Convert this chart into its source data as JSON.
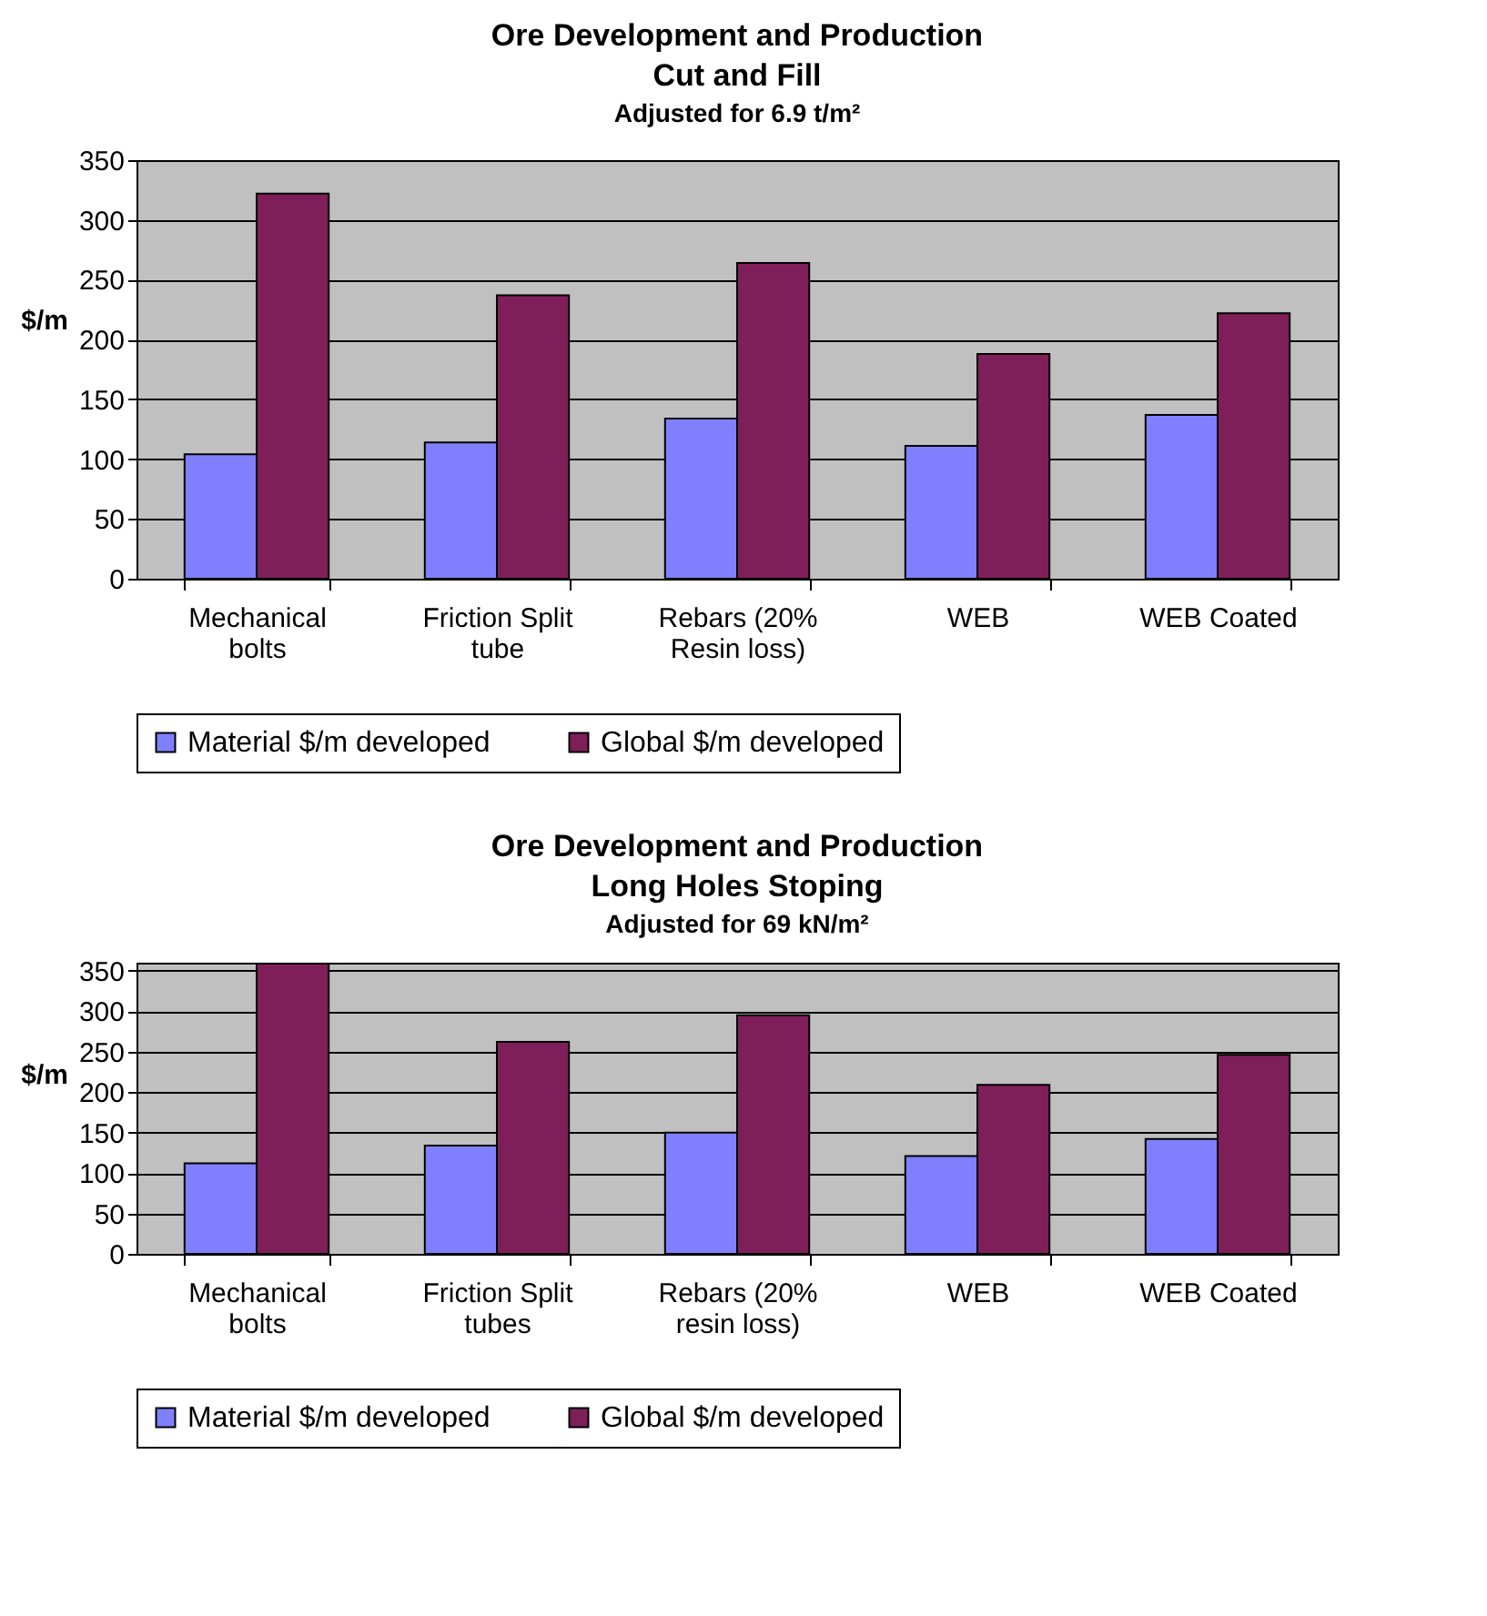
{
  "chart_data": [
    {
      "type": "bar",
      "title": "Ore Development and Production\nCut and Fill",
      "subtitle": "Adjusted for 6.9 t/m²",
      "ylabel": "$/m",
      "categories": [
        "Mechanical bolts",
        "Friction Split tube",
        "Rebars (20% Resin loss)",
        "WEB",
        "WEB Coated"
      ],
      "series": [
        {
          "name": "Material $/m developed",
          "color": "#8080ff",
          "values": [
            104,
            114,
            134,
            111,
            137
          ]
        },
        {
          "name": "Global $/m developed",
          "color": "#7f1f5a",
          "values": [
            322,
            237,
            264,
            188,
            222
          ]
        }
      ],
      "ylim": [
        0,
        350
      ],
      "yticks": [
        0,
        50,
        100,
        150,
        200,
        250,
        300,
        350
      ],
      "grid": "y",
      "legend": "bottom"
    },
    {
      "type": "bar",
      "title": "Ore Development and Production\nLong Holes Stoping",
      "subtitle": "Adjusted for 69 kN/m²",
      "ylabel": "$/m",
      "categories": [
        "Mechanical bolts",
        "Friction Split tubes",
        "Rebars (20% resin loss)",
        "WEB",
        "WEB Coated"
      ],
      "series": [
        {
          "name": "Material $/m developed",
          "color": "#8080ff",
          "values": [
            112,
            134,
            150,
            121,
            142
          ]
        },
        {
          "name": "Global $/m developed",
          "color": "#7f1f5a",
          "values": [
            359,
            262,
            295,
            209,
            246
          ]
        }
      ],
      "ylim": [
        0,
        360
      ],
      "yticks": [
        0,
        50,
        100,
        150,
        200,
        250,
        300,
        350
      ],
      "grid": "y",
      "legend": "bottom"
    }
  ]
}
